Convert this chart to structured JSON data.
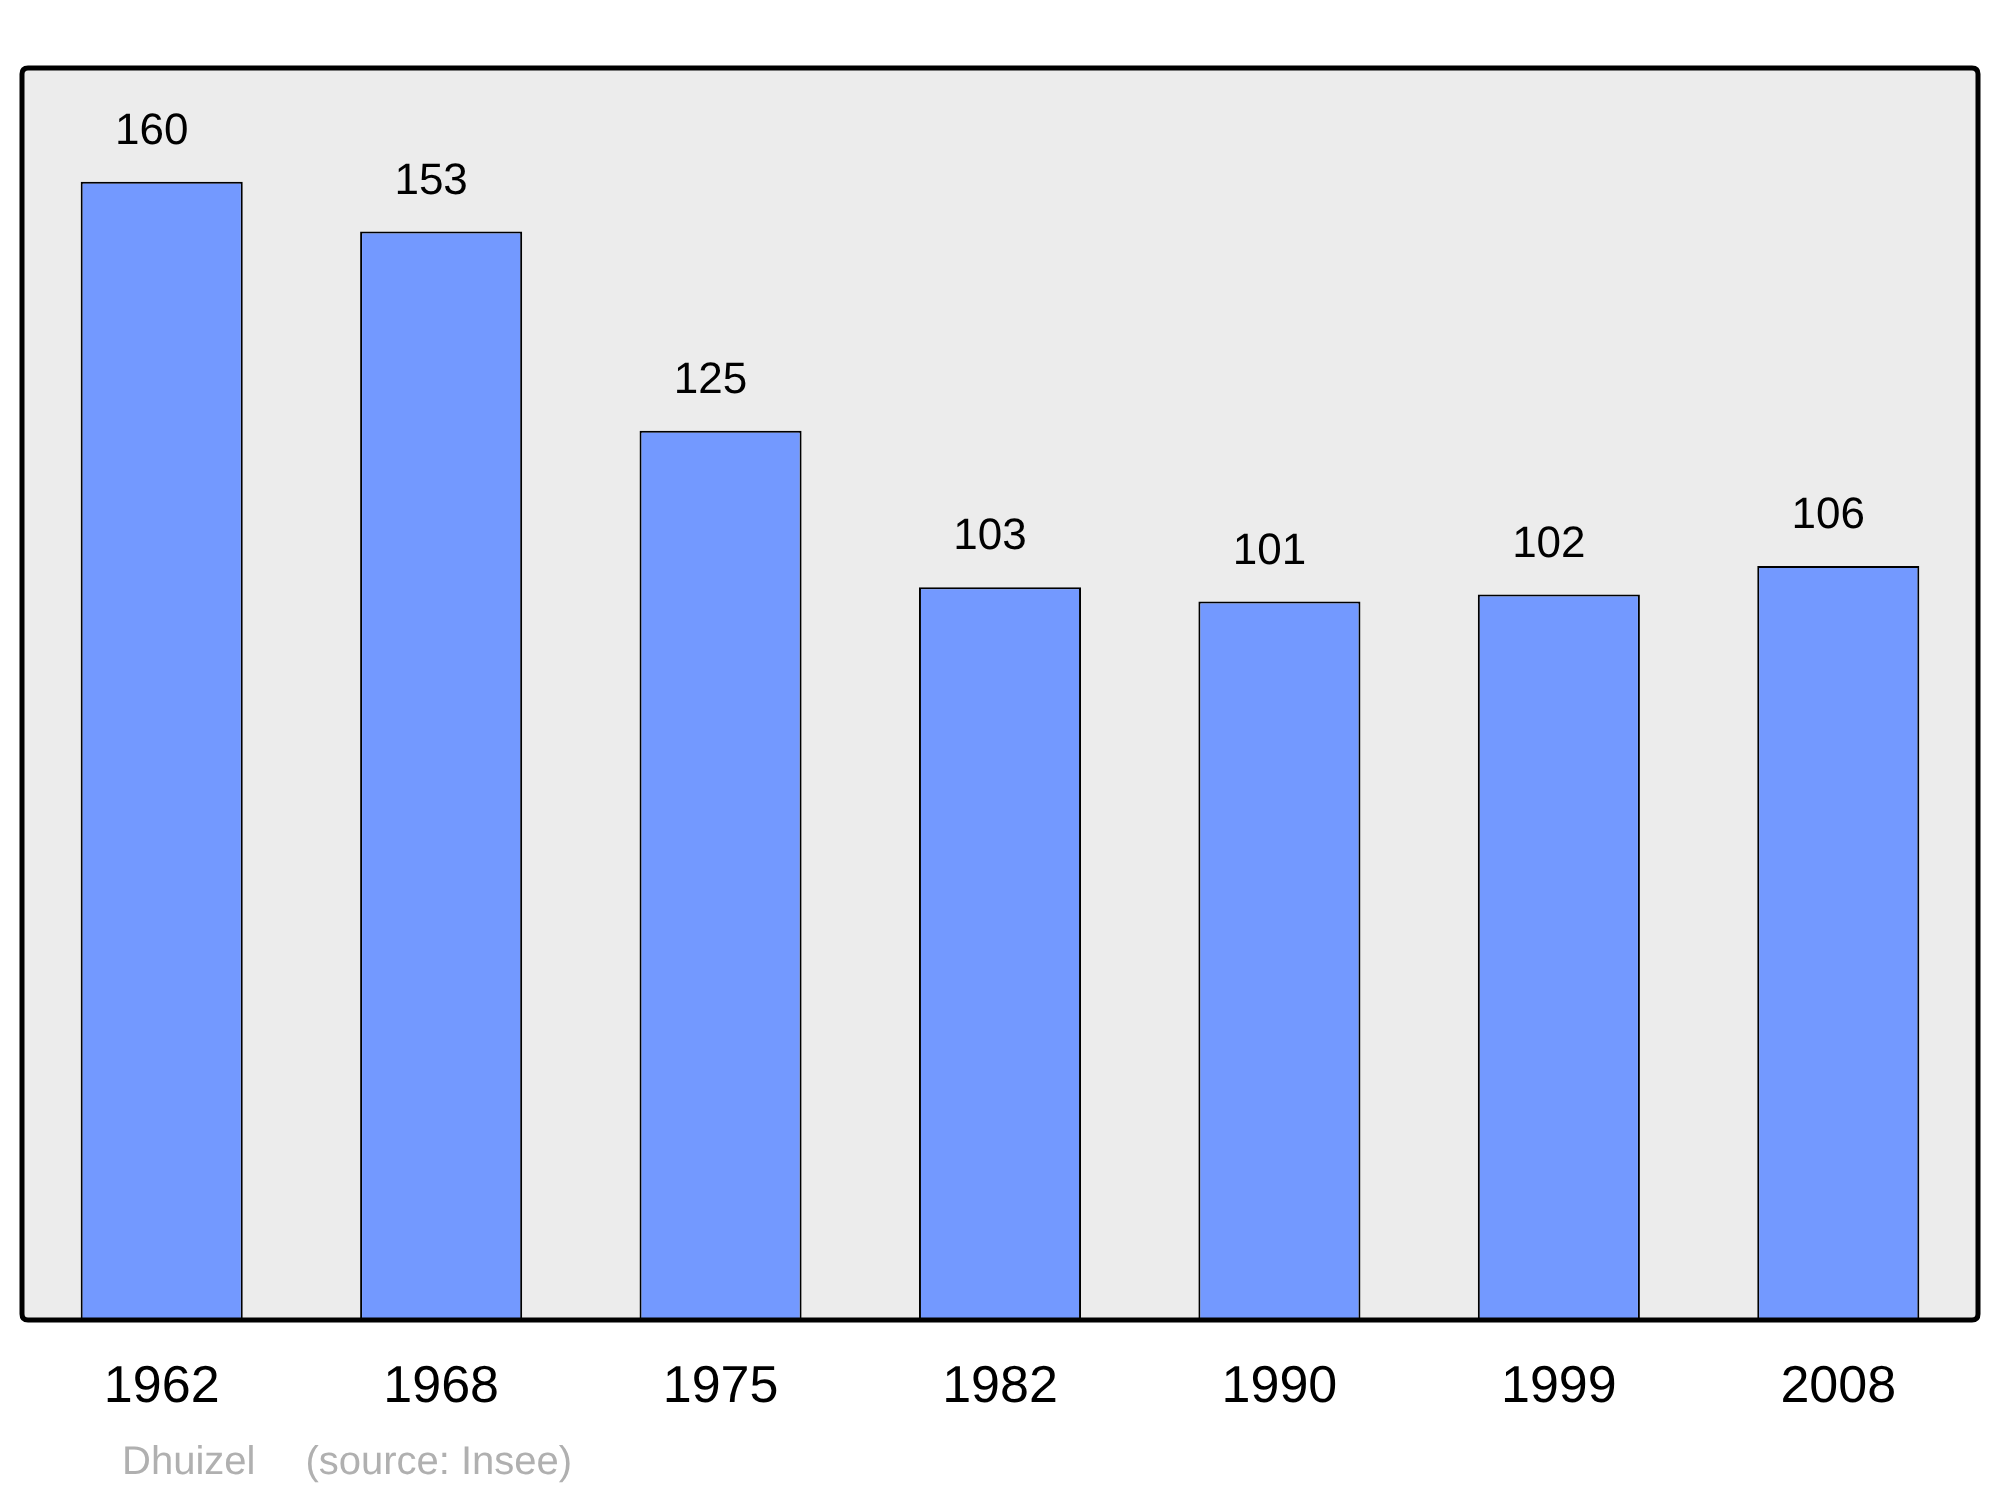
{
  "chart_data": {
    "type": "bar",
    "categories": [
      "1962",
      "1968",
      "1975",
      "1982",
      "1990",
      "1999",
      "2008"
    ],
    "values": [
      160,
      153,
      125,
      103,
      101,
      102,
      106
    ],
    "color": "#7399ff",
    "data_labels": true,
    "grid": false,
    "legend": false,
    "annotations": [
      "Dhuizel",
      "(source: Insee)"
    ]
  }
}
